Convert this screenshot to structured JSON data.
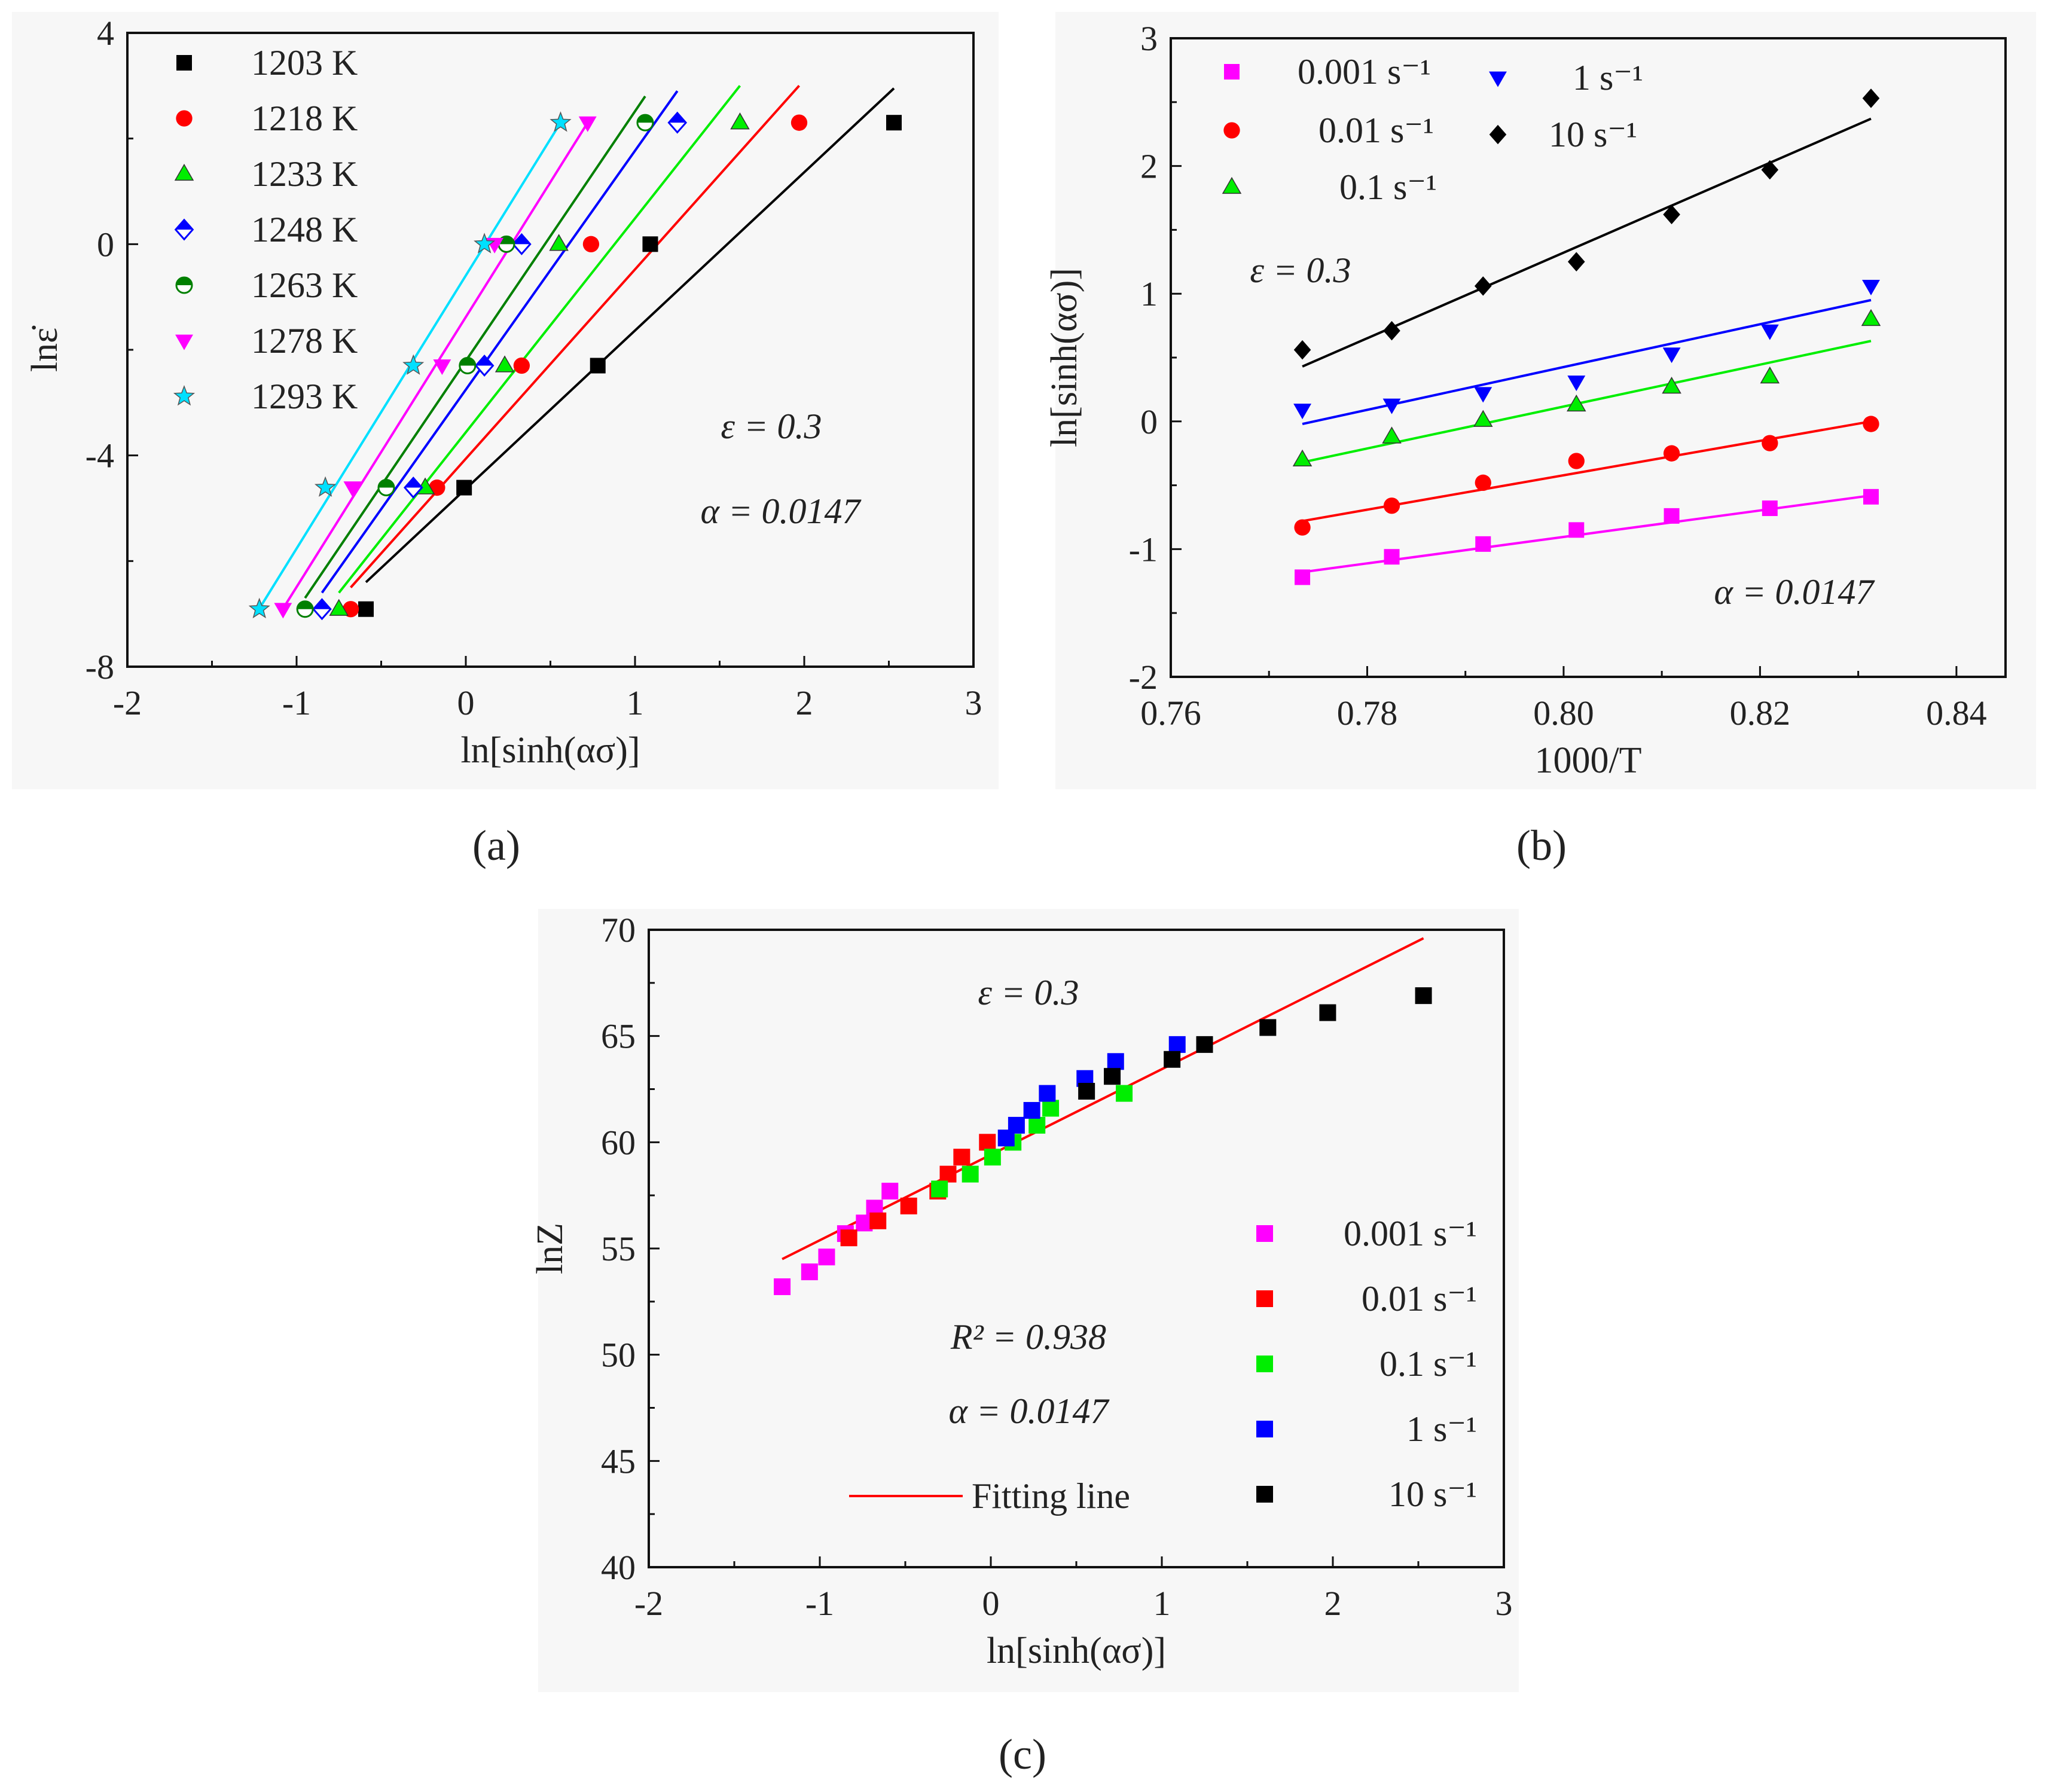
{
  "figure": {
    "captions": [
      "(a)",
      "(b)",
      "(c)"
    ]
  },
  "chart_data": [
    {
      "id": "a",
      "type": "scatter",
      "caption": "(a)",
      "xlabel": "ln[sinh(ασ)]",
      "ylabel": "lnε̇",
      "xlim": [
        -2,
        3
      ],
      "ylim": [
        -8,
        4
      ],
      "xticks": [
        -2,
        -1,
        0,
        1,
        2,
        3
      ],
      "yticks": [
        -8,
        -4,
        0,
        4
      ],
      "legend_position": "top-left",
      "annotations": [
        "ε = 0.3",
        "α = 0.0147"
      ],
      "series": [
        {
          "name": "1203 K",
          "marker": "square",
          "color": "#000000",
          "points": [
            [
              -0.59,
              -6.91
            ],
            [
              -0.01,
              -4.61
            ],
            [
              0.78,
              -2.3
            ],
            [
              1.09,
              0.0
            ],
            [
              2.53,
              2.3
            ]
          ],
          "fit": [
            [
              -0.59,
              -6.4
            ],
            [
              2.53,
              2.95
            ]
          ]
        },
        {
          "name": "1218 K",
          "marker": "circle",
          "color": "#ff0000",
          "points": [
            [
              -0.68,
              -6.91
            ],
            [
              -0.17,
              -4.61
            ],
            [
              0.33,
              -2.3
            ],
            [
              0.74,
              0.0
            ],
            [
              1.97,
              2.3
            ]
          ],
          "fit": [
            [
              -0.68,
              -6.5
            ],
            [
              1.97,
              3.0
            ]
          ]
        },
        {
          "name": "1233 K",
          "marker": "triangle-up",
          "color": "#00ee00",
          "points": [
            [
              -0.75,
              -6.91
            ],
            [
              -0.24,
              -4.61
            ],
            [
              0.23,
              -2.3
            ],
            [
              0.55,
              0.0
            ],
            [
              1.62,
              2.3
            ]
          ],
          "fit": [
            [
              -0.75,
              -6.6
            ],
            [
              1.62,
              3.0
            ]
          ]
        },
        {
          "name": "1248 K",
          "marker": "diamond-half",
          "color": "#0000ff",
          "points": [
            [
              -0.85,
              -6.91
            ],
            [
              -0.31,
              -4.61
            ],
            [
              0.11,
              -2.3
            ],
            [
              0.33,
              0.0
            ],
            [
              1.25,
              2.3
            ]
          ],
          "fit": [
            [
              -0.85,
              -6.6
            ],
            [
              1.25,
              2.9
            ]
          ]
        },
        {
          "name": "1263 K",
          "marker": "circle-half",
          "color": "#008000",
          "points": [
            [
              -0.95,
              -6.91
            ],
            [
              -0.47,
              -4.61
            ],
            [
              0.01,
              -2.3
            ],
            [
              0.24,
              0.0
            ],
            [
              1.06,
              2.3
            ]
          ],
          "fit": [
            [
              -0.95,
              -6.7
            ],
            [
              1.06,
              2.8
            ]
          ]
        },
        {
          "name": "1278 K",
          "marker": "triangle-down",
          "color": "#ff00ff",
          "points": [
            [
              -1.08,
              -6.91
            ],
            [
              -0.67,
              -4.61
            ],
            [
              -0.14,
              -2.3
            ],
            [
              0.17,
              0.0
            ],
            [
              0.72,
              2.3
            ]
          ],
          "fit": [
            [
              -1.08,
              -6.9
            ],
            [
              0.72,
              2.3
            ]
          ]
        },
        {
          "name": "1293 K",
          "marker": "star",
          "color": "#00e0ff",
          "points": [
            [
              -1.22,
              -6.91
            ],
            [
              -0.83,
              -4.61
            ],
            [
              -0.31,
              -2.3
            ],
            [
              0.11,
              0.0
            ],
            [
              0.56,
              2.3
            ]
          ],
          "fit": [
            [
              -1.22,
              -6.9
            ],
            [
              0.56,
              2.3
            ]
          ]
        }
      ]
    },
    {
      "id": "b",
      "type": "scatter",
      "caption": "(b)",
      "xlabel": "1000/T",
      "ylabel": "ln[sinh(ασ)]",
      "xlim": [
        0.76,
        0.845
      ],
      "ylim": [
        -2,
        3
      ],
      "xticks": [
        0.76,
        0.78,
        0.8,
        0.82,
        0.84
      ],
      "ytick_labels": [
        "-2",
        "-1",
        "0",
        "1",
        "2",
        "3"
      ],
      "yticks": [
        -2,
        -1,
        0,
        1,
        2,
        3
      ],
      "legend_position": "top",
      "annotations": [
        "ε = 0.3",
        "α = 0.0147"
      ],
      "series": [
        {
          "name": "0.001 s⁻¹",
          "marker": "square",
          "color": "#ff00ff",
          "points": [
            [
              0.7734,
              -1.22
            ],
            [
              0.7825,
              -1.06
            ],
            [
              0.7918,
              -0.96
            ],
            [
              0.8013,
              -0.85
            ],
            [
              0.811,
              -0.74
            ],
            [
              0.821,
              -0.68
            ],
            [
              0.8313,
              -0.59
            ]
          ],
          "fit": [
            [
              0.7734,
              -1.18
            ],
            [
              0.8313,
              -0.58
            ]
          ]
        },
        {
          "name": "0.01 s⁻¹",
          "marker": "circle",
          "color": "#ff0000",
          "points": [
            [
              0.7734,
              -0.83
            ],
            [
              0.7825,
              -0.66
            ],
            [
              0.7918,
              -0.48
            ],
            [
              0.8013,
              -0.31
            ],
            [
              0.811,
              -0.25
            ],
            [
              0.821,
              -0.17
            ],
            [
              0.8313,
              -0.02
            ]
          ],
          "fit": [
            [
              0.7734,
              -0.78
            ],
            [
              0.8313,
              0.0
            ]
          ]
        },
        {
          "name": "0.1 s⁻¹",
          "marker": "triangle-up",
          "color": "#00ee00",
          "points": [
            [
              0.7734,
              -0.3
            ],
            [
              0.7825,
              -0.12
            ],
            [
              0.7918,
              0.01
            ],
            [
              0.8013,
              0.13
            ],
            [
              0.811,
              0.27
            ],
            [
              0.821,
              0.35
            ],
            [
              0.8313,
              0.8
            ]
          ],
          "fit": [
            [
              0.7734,
              -0.32
            ],
            [
              0.8313,
              0.63
            ]
          ]
        },
        {
          "name": "1 s⁻¹",
          "marker": "triangle-down",
          "color": "#0000ff",
          "points": [
            [
              0.7734,
              0.09
            ],
            [
              0.7825,
              0.13
            ],
            [
              0.7918,
              0.22
            ],
            [
              0.8013,
              0.31
            ],
            [
              0.811,
              0.53
            ],
            [
              0.821,
              0.71
            ],
            [
              0.8313,
              1.06
            ]
          ],
          "fit": [
            [
              0.7734,
              -0.02
            ],
            [
              0.8313,
              0.95
            ]
          ]
        },
        {
          "name": "10 s⁻¹",
          "marker": "diamond",
          "color": "#000000",
          "points": [
            [
              0.7734,
              0.56
            ],
            [
              0.7825,
              0.71
            ],
            [
              0.7918,
              1.06
            ],
            [
              0.8013,
              1.25
            ],
            [
              0.811,
              1.62
            ],
            [
              0.821,
              1.97
            ],
            [
              0.8313,
              2.53
            ]
          ],
          "fit": [
            [
              0.7734,
              0.43
            ],
            [
              0.8313,
              2.37
            ]
          ]
        }
      ]
    },
    {
      "id": "c",
      "type": "scatter",
      "caption": "(c)",
      "xlabel": "ln[sinh(ασ)]",
      "ylabel": "lnZ",
      "xlim": [
        -2,
        3
      ],
      "ylim": [
        40,
        70
      ],
      "xticks": [
        -2,
        -1,
        0,
        1,
        2,
        3
      ],
      "yticks": [
        40,
        45,
        50,
        55,
        60,
        65,
        70
      ],
      "legend_position": "right",
      "annotations": [
        "ε = 0.3",
        "R² = 0.938",
        "α = 0.0147"
      ],
      "fit_label": "Fitting line",
      "fit_color": "#ff0000",
      "fit": [
        [
          -1.22,
          54.5
        ],
        [
          2.53,
          69.6
        ]
      ],
      "series": [
        {
          "name": "0.001 s⁻¹",
          "marker": "square",
          "color": "#ff00ff",
          "points": [
            [
              -1.22,
              53.2
            ],
            [
              -1.06,
              53.9
            ],
            [
              -0.96,
              54.6
            ],
            [
              -0.85,
              55.7
            ],
            [
              -0.74,
              56.2
            ],
            [
              -0.68,
              56.9
            ],
            [
              -0.59,
              57.7
            ]
          ]
        },
        {
          "name": "0.01 s⁻¹",
          "marker": "square",
          "color": "#ff0000",
          "points": [
            [
              -0.83,
              55.5
            ],
            [
              -0.66,
              56.3
            ],
            [
              -0.48,
              57.0
            ],
            [
              -0.31,
              57.7
            ],
            [
              -0.25,
              58.5
            ],
            [
              -0.17,
              59.3
            ],
            [
              -0.02,
              60.0
            ]
          ]
        },
        {
          "name": "0.1 s⁻¹",
          "marker": "square",
          "color": "#00ee00",
          "points": [
            [
              -0.3,
              57.8
            ],
            [
              -0.12,
              58.5
            ],
            [
              0.01,
              59.3
            ],
            [
              0.13,
              60.0
            ],
            [
              0.27,
              60.8
            ],
            [
              0.35,
              61.6
            ],
            [
              0.78,
              62.3
            ]
          ]
        },
        {
          "name": "1 s⁻¹",
          "marker": "square",
          "color": "#0000ff",
          "points": [
            [
              0.09,
              60.2
            ],
            [
              0.15,
              60.8
            ],
            [
              0.24,
              61.5
            ],
            [
              0.33,
              62.3
            ],
            [
              0.55,
              63.0
            ],
            [
              0.73,
              63.8
            ],
            [
              1.09,
              64.6
            ]
          ]
        },
        {
          "name": "10 s⁻¹",
          "marker": "square",
          "color": "#000000",
          "points": [
            [
              0.56,
              62.4
            ],
            [
              0.71,
              63.1
            ],
            [
              1.06,
              63.9
            ],
            [
              1.25,
              64.6
            ],
            [
              1.62,
              65.4
            ],
            [
              1.97,
              66.1
            ],
            [
              2.53,
              66.9
            ]
          ]
        }
      ]
    }
  ]
}
